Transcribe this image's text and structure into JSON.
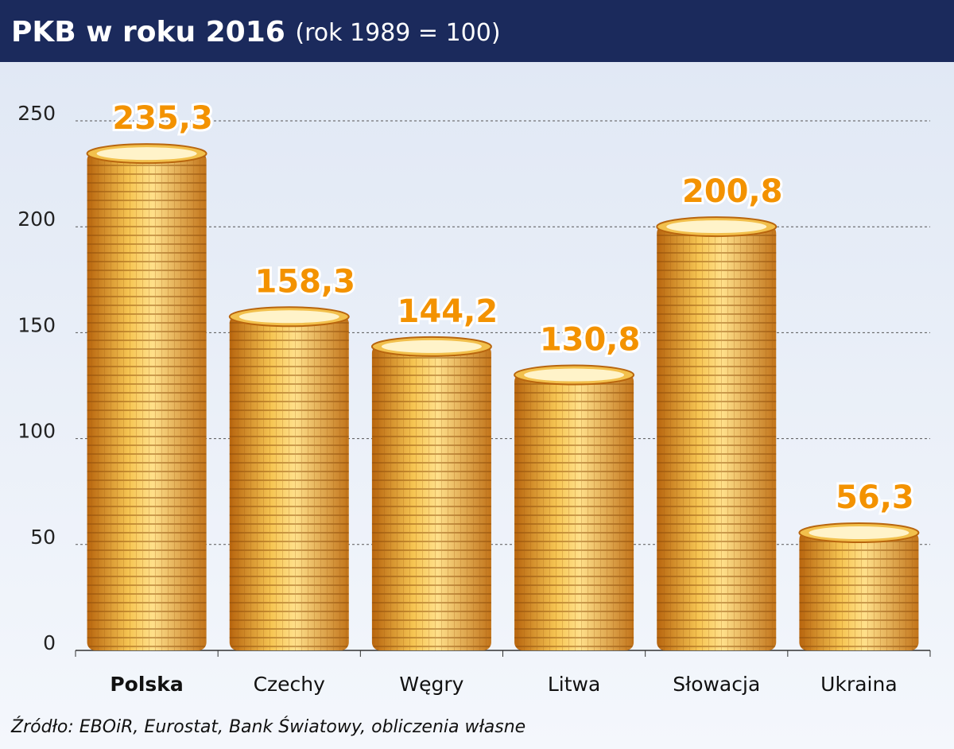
{
  "chart_data": {
    "type": "bar",
    "title": "PKB w roku 2016",
    "subtitle": "(rok 1989 = 100)",
    "categories": [
      "Polska",
      "Czechy",
      "Węgry",
      "Litwa",
      "Słowacja",
      "Ukraina"
    ],
    "values": [
      235.3,
      158.3,
      144.2,
      130.8,
      200.8,
      56.3
    ],
    "value_labels": [
      "235,3",
      "158,3",
      "144,2",
      "130,8",
      "200,8",
      "56,3"
    ],
    "color": "#e8a530",
    "ylim": [
      0,
      250
    ],
    "yticks": [
      0,
      50,
      100,
      150,
      200,
      250
    ],
    "grid": true,
    "source": "Źródło: EBOiR, Eurostat, Bank Światowy, obliczenia własne"
  }
}
